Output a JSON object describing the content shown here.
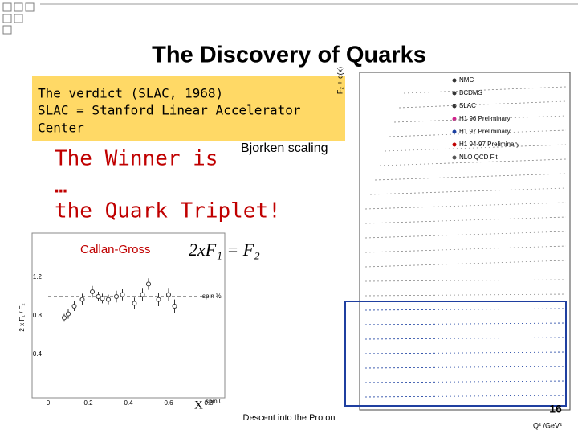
{
  "title": "The Discovery of Quarks",
  "verdict_box": {
    "lines": [
      "The verdict (SLAC, 1968)",
      "SLAC = Stanford Linear Accelerator",
      "Center"
    ]
  },
  "bjorken_label": "Bjorken scaling",
  "winner": {
    "lines": [
      "The Winner is",
      "…",
      "the Quark Triplet!"
    ]
  },
  "callan_gross": {
    "label": "Callan-Gross",
    "formula": "2xF₁ = F₂",
    "y_axis_label": "2 x F₁ / F₂",
    "yticks": [
      "1.2",
      "0.8",
      "0.4"
    ],
    "xticks": [
      "0",
      "0.2",
      "0.4",
      "0.6",
      "0.8"
    ],
    "x_label": "X",
    "spin_half": "spin ½",
    "spin_zero": "spin 0",
    "points": [
      [
        0.08,
        0.78,
        0.04
      ],
      [
        0.1,
        0.82,
        0.05
      ],
      [
        0.13,
        0.9,
        0.05
      ],
      [
        0.17,
        0.97,
        0.06
      ],
      [
        0.22,
        1.05,
        0.06
      ],
      [
        0.25,
        1.0,
        0.05
      ],
      [
        0.27,
        0.98,
        0.05
      ],
      [
        0.3,
        0.97,
        0.05
      ],
      [
        0.34,
        1.0,
        0.06
      ],
      [
        0.37,
        1.02,
        0.06
      ],
      [
        0.43,
        0.93,
        0.06
      ],
      [
        0.47,
        1.02,
        0.07
      ],
      [
        0.5,
        1.13,
        0.06
      ],
      [
        0.55,
        0.97,
        0.07
      ],
      [
        0.6,
        1.02,
        0.07
      ],
      [
        0.63,
        0.9,
        0.07
      ]
    ]
  },
  "structure_plot": {
    "y_label": "F₂ + c(x)",
    "x_label": "Q² /GeV²",
    "legend": [
      "NMC",
      "BCDMS",
      "SLAC",
      "H1 96 Preliminary",
      "H1 97 Preliminary",
      "H1 94-97 Preliminary",
      "NLO QCD Fit"
    ]
  },
  "footer": "Descent into the Proton",
  "page_number": "16"
}
